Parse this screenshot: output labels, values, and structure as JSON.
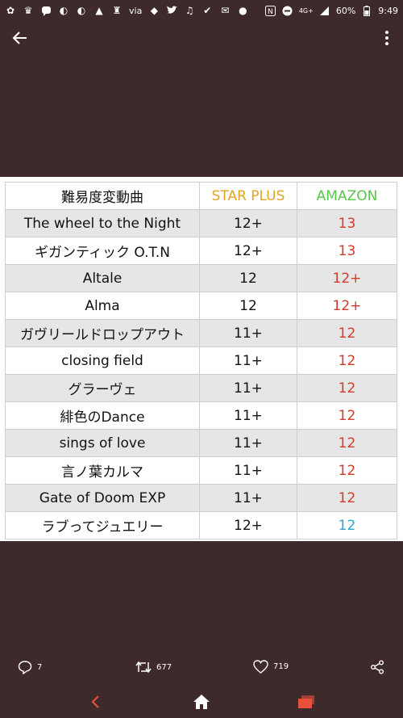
{
  "status_bar": {
    "via": "via",
    "network": "4G+",
    "battery": "60%",
    "time": "9:49"
  },
  "table": {
    "headers": [
      "難易度変動曲",
      "STAR PLUS",
      "AMAZON"
    ],
    "rows": [
      [
        "The wheel to the Night",
        "12+",
        "13"
      ],
      [
        "ギガンティック O.T.N",
        "12+",
        "13"
      ],
      [
        "Altale",
        "12",
        "12+"
      ],
      [
        "Alma",
        "12",
        "12+"
      ],
      [
        "ガヴリールドロップアウト",
        "11+",
        "12"
      ],
      [
        "closing field",
        "11+",
        "12"
      ],
      [
        "グラーヴェ",
        "11+",
        "12"
      ],
      [
        "緋色のDance",
        "11+",
        "12"
      ],
      [
        "sings of love",
        "11+",
        "12"
      ],
      [
        "言ノ葉カルマ",
        "11+",
        "12"
      ],
      [
        "Gate of Doom EXP",
        "11+",
        "12"
      ],
      [
        "ラブってジュエリー",
        "12+",
        "12"
      ]
    ]
  },
  "actions": {
    "reply_count": "7",
    "retweet_count": "677",
    "like_count": "719"
  },
  "colors": {
    "background": "#3e2a2b",
    "star_plus": "#e3a324",
    "amazon": "#57c64a",
    "red_value": "#d23c2c",
    "blue_value": "#2aa6c9",
    "nav_accent": "#e8503a"
  }
}
